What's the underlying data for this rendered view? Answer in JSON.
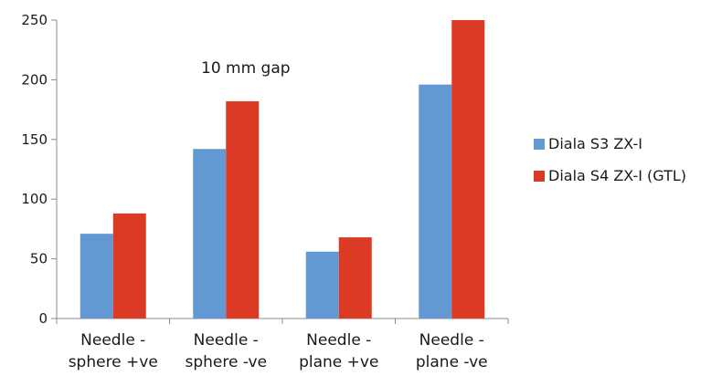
{
  "chart_data": {
    "type": "bar",
    "categories": [
      [
        "Needle -",
        "sphere +ve"
      ],
      [
        "Needle -",
        "sphere -ve"
      ],
      [
        "Needle -",
        "plane +ve"
      ],
      [
        "Needle -",
        "plane -ve"
      ]
    ],
    "series": [
      {
        "name": "Diala S3 ZX-I",
        "values": [
          71,
          142,
          56,
          196
        ],
        "color": "#6399d3"
      },
      {
        "name": "Diala S4 ZX-I (GTL)",
        "values": [
          88,
          182,
          68,
          250
        ],
        "color": "#dd3a26"
      }
    ],
    "ylim": [
      0,
      250
    ],
    "yticks": [
      0,
      50,
      100,
      150,
      200,
      250
    ],
    "annotation": "10 mm gap",
    "grid": false,
    "legend_position": "right"
  }
}
